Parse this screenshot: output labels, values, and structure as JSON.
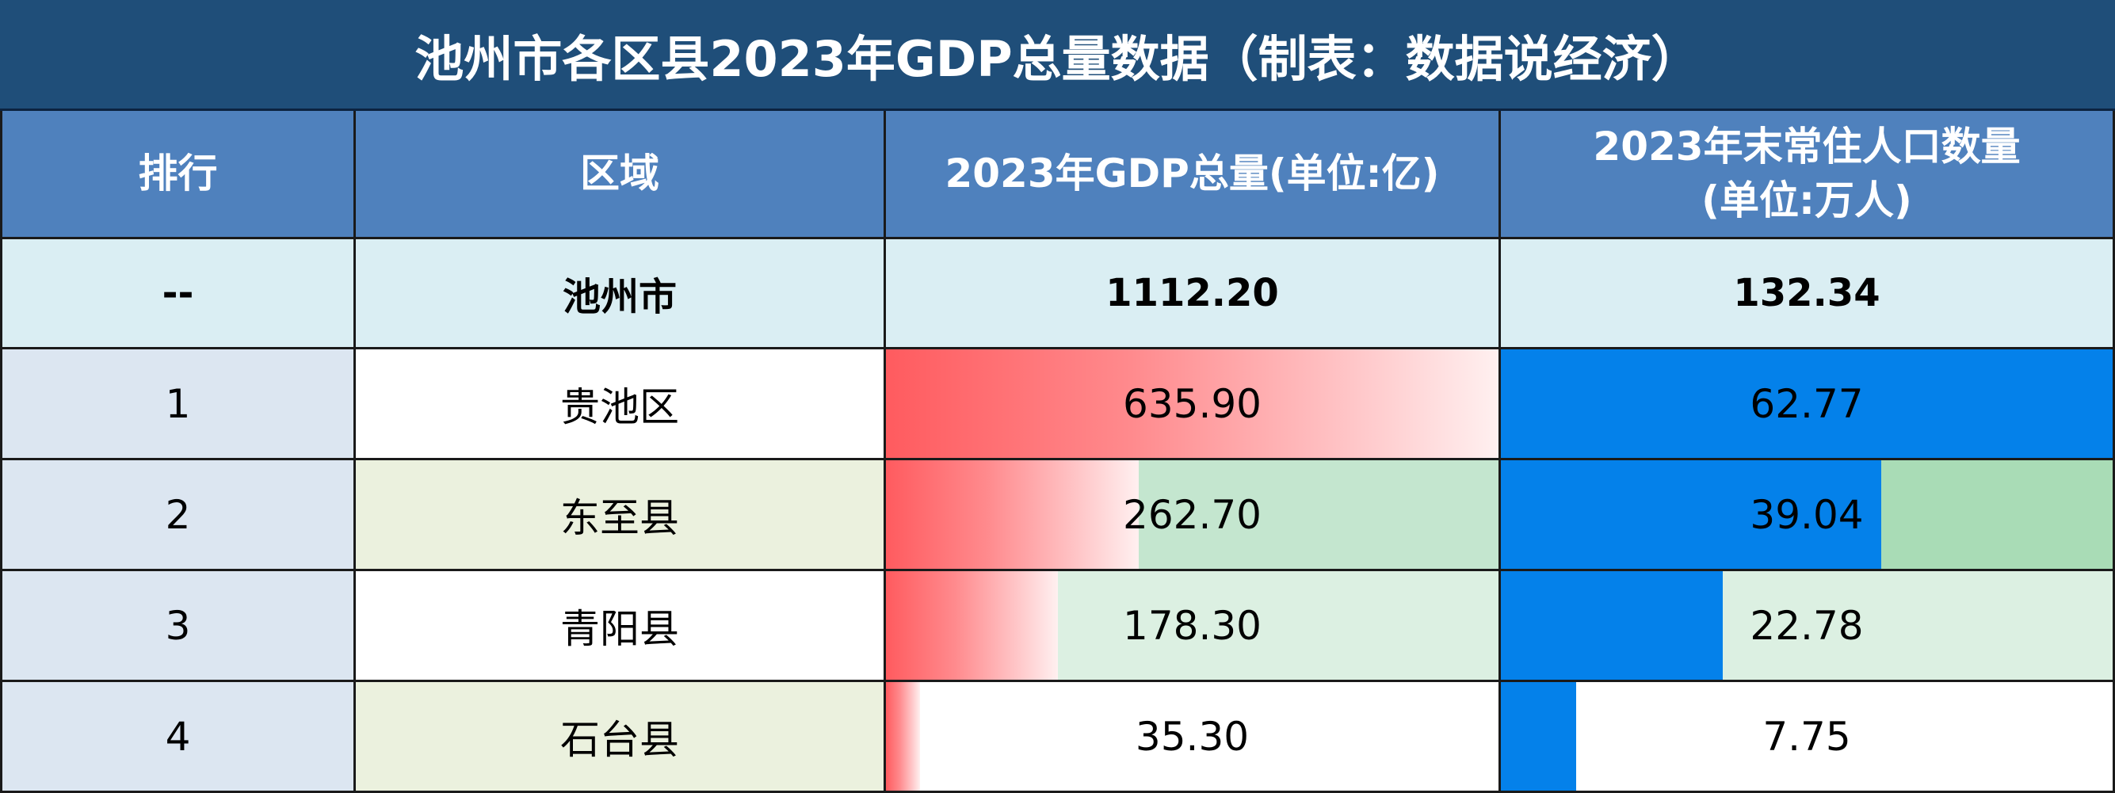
{
  "title": "池州市各区县2023年GDP总量数据（制表：数据说经济）",
  "headers": {
    "rank": "排行",
    "region": "区域",
    "gdp": "2023年GDP总量(单位:亿)",
    "pop_line1": "2023年末常住人口数量",
    "pop_line2": "(单位:万人)"
  },
  "total": {
    "rank": "--",
    "region": "池州市",
    "gdp": "1112.20",
    "pop": "132.34"
  },
  "colors": {
    "title_bg": "#1f4e79",
    "header_bg": "#4f81bd",
    "gdp_bar": "#ff5b5f",
    "pop_bar": "#0481ea"
  },
  "chart_data": {
    "type": "table",
    "title": "池州市各区县2023年GDP总量数据（制表：数据说经济）",
    "columns": [
      "排行",
      "区域",
      "2023年GDP总量(单位:亿)",
      "2023年末常住人口数量(单位:万人)"
    ],
    "rows": [
      {
        "rank": "1",
        "region": "贵池区",
        "gdp": "635.90",
        "pop": "62.77",
        "row_bg": "#ffffff",
        "gdp_bg": "#ffffff",
        "pop_bg": "#ffffff"
      },
      {
        "rank": "2",
        "region": "东至县",
        "gdp": "262.70",
        "pop": "39.04",
        "row_bg": "#ebf1de",
        "gdp_bg": "#c4e6cf",
        "pop_bg": "#a9dcb6"
      },
      {
        "rank": "3",
        "region": "青阳县",
        "gdp": "178.30",
        "pop": "22.78",
        "row_bg": "#ffffff",
        "gdp_bg": "#dcf0e2",
        "pop_bg": "#dcf0e2"
      },
      {
        "rank": "4",
        "region": "石台县",
        "gdp": "35.30",
        "pop": "7.75",
        "row_bg": "#ebf1de",
        "gdp_bg": "#ffffff",
        "pop_bg": "#ffffff"
      }
    ]
  }
}
